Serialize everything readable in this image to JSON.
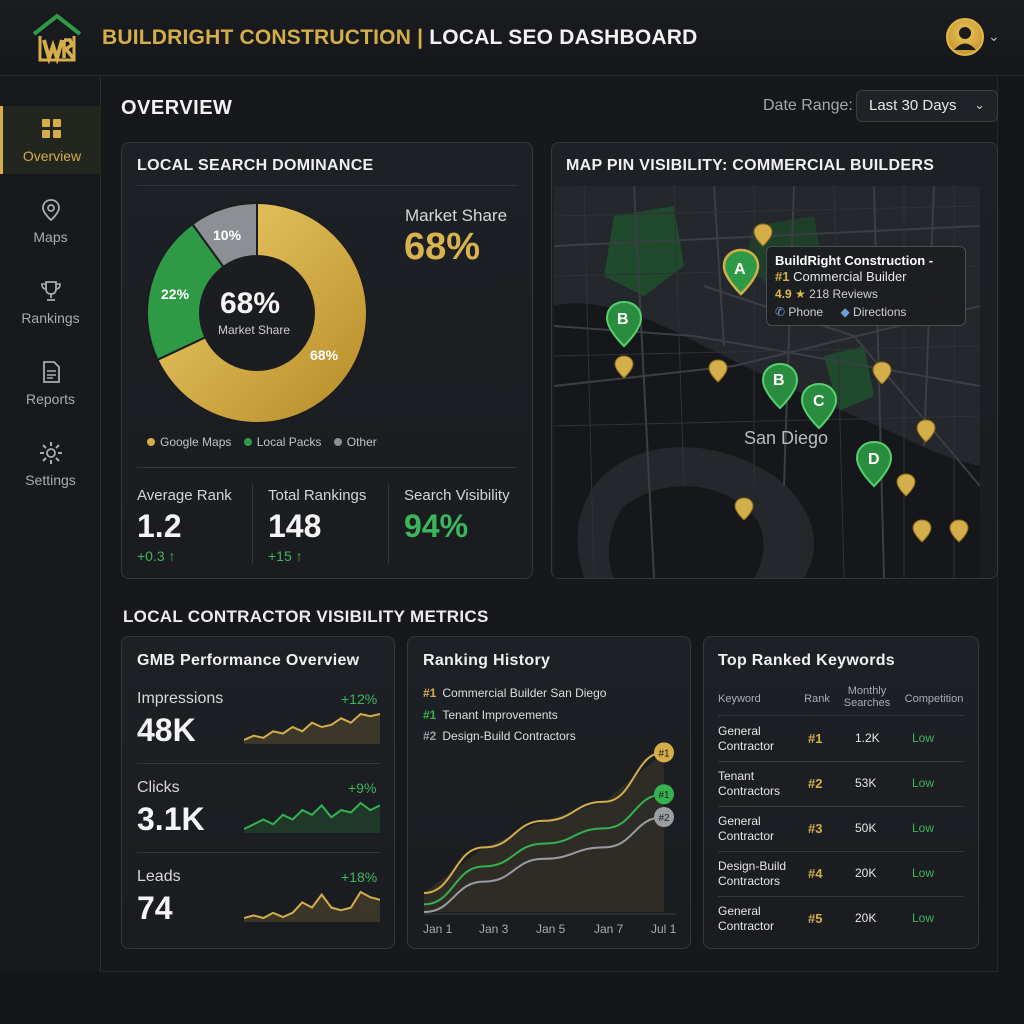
{
  "header": {
    "brand": "BUILDRIGHT CONSTRUCTION",
    "separator": "|",
    "title": "LOCAL SEO DASHBOARD"
  },
  "sidebar": {
    "items": [
      {
        "label": "Overview",
        "icon": "grid-icon",
        "active": true
      },
      {
        "label": "Maps",
        "icon": "map-pin-icon",
        "active": false
      },
      {
        "label": "Rankings",
        "icon": "trophy-icon",
        "active": false
      },
      {
        "label": "Reports",
        "icon": "document-icon",
        "active": false
      },
      {
        "label": "Settings",
        "icon": "gear-icon",
        "active": false
      }
    ]
  },
  "page": {
    "title": "OVERVIEW",
    "date_label": "Date Range:",
    "date_value": "Last 30 Days"
  },
  "dominance": {
    "title": "LOCAL SEARCH DOMINANCE",
    "center_value": "68%",
    "center_label": "Market Share",
    "slices": [
      {
        "label": "Google Maps",
        "value": 68,
        "text": "68%",
        "color": "#d4ae4a"
      },
      {
        "label": "Local Packs",
        "value": 22,
        "text": "22%",
        "color": "#2e9a45"
      },
      {
        "label": "Other",
        "value": 10,
        "text": "10%",
        "color": "#8c8f93"
      }
    ],
    "market_share_label": "Market Share",
    "market_share_value": "68%",
    "stats": [
      {
        "label": "Average Rank",
        "value": "1.2",
        "delta": "+0.3 ↑"
      },
      {
        "label": "Total Rankings",
        "value": "148",
        "delta": "+15 ↑"
      },
      {
        "label": "Search Visibility",
        "value": "94%",
        "delta": ""
      }
    ]
  },
  "map": {
    "title": "MAP PIN VISIBILITY: COMMERCIAL BUILDERS",
    "city": "San Diego",
    "pins": [
      "A",
      "B",
      "B",
      "C",
      "D"
    ],
    "tooltip": {
      "name": "BuildRight Construction -",
      "rank": "#1",
      "category": "Commercial Builder",
      "rating": "4.9",
      "star": "★",
      "reviews": "218 Reviews",
      "phone_label": "Phone",
      "directions_label": "Directions"
    }
  },
  "section": {
    "title": "LOCAL CONTRACTOR VISIBILITY METRICS"
  },
  "gmb": {
    "title": "GMB Performance Overview",
    "metrics": [
      {
        "label": "Impressions",
        "value": "48K",
        "delta": "+12%",
        "color": "#d4ae4a",
        "trend": [
          3,
          4,
          3.5,
          5,
          4.5,
          6,
          5,
          7,
          6,
          6.5,
          8,
          7,
          9,
          8.5,
          9
        ]
      },
      {
        "label": "Clicks",
        "value": "3.1K",
        "delta": "+9%",
        "color": "#34b24f",
        "trend": [
          3,
          4,
          5,
          4,
          6,
          5,
          7,
          6,
          8,
          5.5,
          7,
          6.5,
          8.5,
          7,
          8
        ]
      },
      {
        "label": "Leads",
        "value": "74",
        "delta": "+18%",
        "color": "#d4ae4a",
        "trend": [
          3,
          3.5,
          3,
          4,
          3.2,
          4,
          6,
          5,
          7.5,
          5,
          4.5,
          5,
          8,
          7,
          6.5
        ]
      }
    ]
  },
  "ranking_history": {
    "title": "Ranking History",
    "legend": [
      {
        "rank": "#1",
        "label": "Commercial Builder San Diego",
        "color": "#d4ae4a"
      },
      {
        "rank": "#1",
        "label": "Tenant Improvements",
        "color": "#34b24f"
      },
      {
        "rank": "#2",
        "label": "Design-Build Contractors",
        "color": "#9a9da1"
      }
    ],
    "end_labels": [
      "#1",
      "#1",
      "#2"
    ],
    "ticks": [
      "Jan 1",
      "Jan 3",
      "Jan 5",
      "Jan 7",
      "Jul 1"
    ]
  },
  "chart_data": {
    "type": "line",
    "title": "Ranking History",
    "x": [
      "Jan 1",
      "Jan 3",
      "Jan 5",
      "Jan 7",
      "Jul 1"
    ],
    "series": [
      {
        "name": "Commercial Builder San Diego",
        "values": [
          10,
          34,
          48,
          58,
          84
        ]
      },
      {
        "name": "Tenant Improvements",
        "values": [
          4,
          24,
          36,
          44,
          62
        ]
      },
      {
        "name": "Design-Build Contractors",
        "values": [
          0,
          16,
          28,
          34,
          50
        ]
      }
    ],
    "ylim": [
      0,
      100
    ],
    "grid": false
  },
  "keywords": {
    "title": "Top Ranked Keywords",
    "headers": [
      "Keyword",
      "Rank",
      "Monthly Searches",
      "Competition"
    ],
    "rows": [
      {
        "kw1": "General",
        "kw2": "Contractor",
        "rank": "#1",
        "searches": "1.2K",
        "competition": "Low"
      },
      {
        "kw1": "Tenant",
        "kw2": "Contractors",
        "rank": "#2",
        "searches": "53K",
        "competition": "Low"
      },
      {
        "kw1": "General",
        "kw2": "Contractor",
        "rank": "#3",
        "searches": "50K",
        "competition": "Low"
      },
      {
        "kw1": "Design-Build",
        "kw2": "Contractors",
        "rank": "#4",
        "searches": "20K",
        "competition": "Low"
      },
      {
        "kw1": "General",
        "kw2": "Contractor",
        "rank": "#5",
        "searches": "20K",
        "competition": "Low"
      }
    ]
  }
}
